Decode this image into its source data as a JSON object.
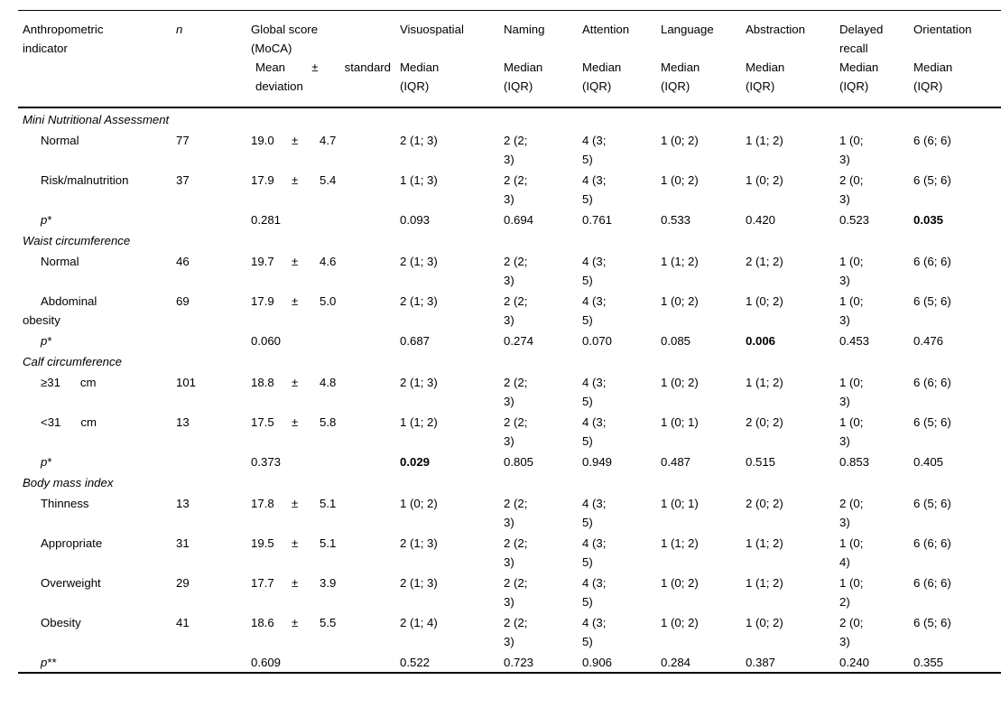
{
  "page": {
    "background": "#ffffff",
    "text_color": "#000000"
  },
  "table": {
    "pm_symbol": "±",
    "header": {
      "indicator_title": "Anthropometric\nindicator",
      "n_title": "n",
      "cols": [
        {
          "title": "Global score\n(MoCA)",
          "sub": "Mean ± standard deviation"
        },
        {
          "title": "Visuospatial",
          "sub": "Median\n(IQR)"
        },
        {
          "title": "Naming",
          "sub": "Median\n(IQR)"
        },
        {
          "title": "Attention",
          "sub": "Median\n(IQR)"
        },
        {
          "title": "Language",
          "sub": "Median\n(IQR)"
        },
        {
          "title": "Abstraction",
          "sub": "Median\n(IQR)"
        },
        {
          "title": "Delayed\nrecall",
          "sub": "Median\n(IQR)"
        },
        {
          "title": "Orientation",
          "sub": "Median\n(IQR)"
        }
      ]
    },
    "sections": [
      {
        "heading": "Mini Nutritional Assessment",
        "rows": [
          {
            "type": "data",
            "label": "Normal",
            "n": "77",
            "mean": "19.0",
            "sd": "4.7",
            "cells": [
              "2 (1; 3)",
              "2 (2;\n3)",
              "4 (3;\n5)",
              "1 (0; 2)",
              "1 (1; 2)",
              "1 (0;\n3)",
              "6 (6; 6)"
            ]
          },
          {
            "type": "data",
            "label": "Risk/malnutrition",
            "n": "37",
            "mean": "17.9",
            "sd": "5.4",
            "cells": [
              "1 (1; 3)",
              "2 (2;\n3)",
              "4 (3;\n5)",
              "1 (0; 2)",
              "1 (0; 2)",
              "2 (0;\n3)",
              "6 (5; 6)"
            ]
          },
          {
            "type": "p",
            "p_label": "p",
            "p_sup": "*",
            "p_global": "0.281",
            "cells": [
              "0.093",
              "0.694",
              "0.761",
              "0.533",
              "0.420",
              "0.523",
              "0.035"
            ],
            "bold_cells": [
              6
            ]
          }
        ]
      },
      {
        "heading": "Waist circumference",
        "rows": [
          {
            "type": "data",
            "label": "Normal",
            "n": "46",
            "mean": "19.7",
            "sd": "4.6",
            "cells": [
              "2 (1; 3)",
              "2 (2;\n3)",
              "4 (3;\n5)",
              "1 (1; 2)",
              "2 (1; 2)",
              "1 (0;\n3)",
              "6 (6; 6)"
            ]
          },
          {
            "type": "data",
            "label": "Abdominal\nobesity",
            "n": "69",
            "mean": "17.9",
            "sd": "5.0",
            "cells": [
              "2 (1; 3)",
              "2 (2;\n3)",
              "4 (3;\n5)",
              "1 (0; 2)",
              "1 (0; 2)",
              "1 (0;\n3)",
              "6 (5; 6)"
            ]
          },
          {
            "type": "p",
            "p_label": "p",
            "p_sup": "*",
            "p_global": "0.060",
            "cells": [
              "0.687",
              "0.274",
              "0.070",
              "0.085",
              "0.006",
              "0.453",
              "0.476"
            ],
            "bold_cells": [
              4
            ]
          }
        ]
      },
      {
        "heading": "Calf circumference",
        "rows": [
          {
            "type": "data",
            "label": "≥31      cm",
            "n": "101",
            "mean": "18.8",
            "sd": "4.8",
            "cells": [
              "2 (1; 3)",
              "2 (2;\n3)",
              "4 (3;\n5)",
              "1 (0; 2)",
              "1 (1; 2)",
              "1 (0;\n3)",
              "6 (6; 6)"
            ]
          },
          {
            "type": "data",
            "label": "<31      cm",
            "n": "13",
            "mean": "17.5",
            "sd": "5.8",
            "cells": [
              "1 (1; 2)",
              "2 (2;\n3)",
              "4 (3;\n5)",
              "1 (0; 1)",
              "2 (0; 2)",
              "1 (0;\n3)",
              "6 (5; 6)"
            ]
          },
          {
            "type": "p",
            "p_label": "p",
            "p_sup": "*",
            "p_global": "0.373",
            "cells": [
              "0.029",
              "0.805",
              "0.949",
              "0.487",
              "0.515",
              "0.853",
              "0.405"
            ],
            "bold_cells": [
              0
            ]
          }
        ]
      },
      {
        "heading": "Body mass index",
        "rows": [
          {
            "type": "data",
            "label": "Thinness",
            "n": "13",
            "mean": "17.8",
            "sd": "5.1",
            "cells": [
              "1 (0; 2)",
              "2 (2;\n3)",
              "4 (3;\n5)",
              "1 (0; 1)",
              "2 (0; 2)",
              "2 (0;\n3)",
              "6 (5; 6)"
            ]
          },
          {
            "type": "data",
            "label": "Appropriate",
            "n": "31",
            "mean": "19.5",
            "sd": "5.1",
            "cells": [
              "2 (1; 3)",
              "2 (2;\n3)",
              "4 (3;\n5)",
              "1 (1; 2)",
              "1 (1; 2)",
              "1 (0;\n4)",
              "6 (6; 6)"
            ]
          },
          {
            "type": "data",
            "label": "Overweight",
            "n": "29",
            "mean": "17.7",
            "sd": "3.9",
            "cells": [
              "2 (1; 3)",
              "2 (2;\n3)",
              "4 (3;\n5)",
              "1 (0; 2)",
              "1 (1; 2)",
              "1 (0;\n2)",
              "6 (6; 6)"
            ]
          },
          {
            "type": "data",
            "label": "Obesity",
            "n": "41",
            "mean": "18.6",
            "sd": "5.5",
            "cells": [
              "2 (1; 4)",
              "2 (2;\n3)",
              "4 (3;\n5)",
              "1 (0; 2)",
              "1 (0; 2)",
              "2 (0;\n3)",
              "6 (5; 6)"
            ]
          },
          {
            "type": "p",
            "p_label": "p",
            "p_sup": "**",
            "p_global": "0.609",
            "cells": [
              "0.522",
              "0.723",
              "0.906",
              "0.284",
              "0.387",
              "0.240",
              "0.355"
            ],
            "bold_cells": []
          }
        ]
      }
    ]
  }
}
